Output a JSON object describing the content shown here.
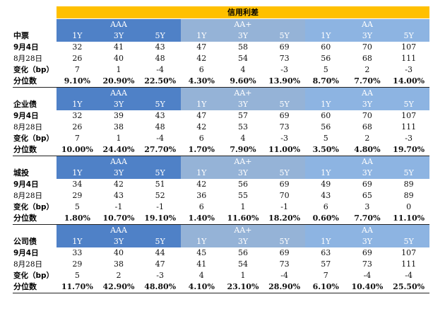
{
  "title": "信用利差",
  "sections": [
    {
      "name": "中票",
      "grades": [
        "AAA",
        "AA+",
        "AA"
      ],
      "tenors": [
        "1Y",
        "3Y",
        "5Y",
        "1Y",
        "3Y",
        "5Y",
        "1Y",
        "3Y",
        "5Y"
      ],
      "rows": [
        {
          "label": "9月4日",
          "values": [
            "32",
            "41",
            "43",
            "47",
            "58",
            "69",
            "60",
            "70",
            "107"
          ]
        },
        {
          "label": "8月28日",
          "values": [
            "26",
            "40",
            "48",
            "42",
            "54",
            "73",
            "56",
            "68",
            "111"
          ]
        },
        {
          "label": "变化（bp）",
          "values": [
            "7",
            "1",
            "-4",
            "6",
            "4",
            "-3",
            "5",
            "2",
            "-3"
          ]
        },
        {
          "label": "分位数",
          "values": [
            "9.10%",
            "20.90%",
            "22.50%",
            "4.30%",
            "9.60%",
            "13.90%",
            "8.70%",
            "7.70%",
            "14.00%"
          ]
        }
      ]
    },
    {
      "name": "企业债",
      "grades": [
        "AAA",
        "AA+",
        "AA"
      ],
      "tenors": [
        "1Y",
        "3Y",
        "5Y",
        "1Y",
        "3Y",
        "5Y",
        "1Y",
        "3Y",
        "5Y"
      ],
      "rows": [
        {
          "label": "9月4日",
          "values": [
            "32",
            "39",
            "43",
            "47",
            "57",
            "69",
            "60",
            "70",
            "107"
          ]
        },
        {
          "label": "8月28日",
          "values": [
            "26",
            "38",
            "48",
            "42",
            "53",
            "73",
            "56",
            "68",
            "111"
          ]
        },
        {
          "label": "变化（bp）",
          "values": [
            "7",
            "1",
            "-4",
            "6",
            "4",
            "-3",
            "5",
            "2",
            "-3"
          ]
        },
        {
          "label": "分位数",
          "values": [
            "10.00%",
            "24.40%",
            "27.70%",
            "1.70%",
            "7.90%",
            "11.00%",
            "3.50%",
            "4.80%",
            "19.70%"
          ]
        }
      ]
    },
    {
      "name": "城投",
      "grades": [
        "AAA",
        "AA+",
        "AA"
      ],
      "tenors": [
        "1Y",
        "3Y",
        "5Y",
        "1Y",
        "3Y",
        "5Y",
        "1Y",
        "3Y",
        "5Y"
      ],
      "rows": [
        {
          "label": "9月4日",
          "values": [
            "34",
            "42",
            "51",
            "42",
            "56",
            "69",
            "49",
            "69",
            "89"
          ]
        },
        {
          "label": "8月28日",
          "values": [
            "29",
            "43",
            "52",
            "36",
            "55",
            "70",
            "43",
            "65",
            "89"
          ]
        },
        {
          "label": "变化（bp）",
          "values": [
            "5",
            "-1",
            "-1",
            "6",
            "1",
            "-1",
            "6",
            "3",
            "0"
          ]
        },
        {
          "label": "分位数",
          "values": [
            "1.80%",
            "10.70%",
            "19.10%",
            "1.40%",
            "11.60%",
            "18.20%",
            "0.60%",
            "7.70%",
            "11.10%"
          ]
        }
      ]
    },
    {
      "name": "公司债",
      "grades": [
        "AAA",
        "AA+",
        "AA"
      ],
      "tenors": [
        "1Y",
        "3Y",
        "5Y",
        "1Y",
        "3Y",
        "5Y",
        "1Y",
        "3Y",
        "5Y"
      ],
      "rows": [
        {
          "label": "9月4日",
          "values": [
            "33",
            "40",
            "44",
            "45",
            "56",
            "69",
            "63",
            "69",
            "107"
          ]
        },
        {
          "label": "8月28日",
          "values": [
            "29",
            "38",
            "47",
            "41",
            "54",
            "73",
            "57",
            "73",
            "111"
          ]
        },
        {
          "label": "变化（bp）",
          "values": [
            "5",
            "2",
            "-3",
            "4",
            "1",
            "-4",
            "7",
            "-4",
            "-4"
          ]
        },
        {
          "label": "分位数",
          "values": [
            "11.70%",
            "42.90%",
            "48.80%",
            "4.10%",
            "23.10%",
            "28.90%",
            "6.10%",
            "10.40%",
            "25.50%"
          ]
        }
      ]
    }
  ]
}
